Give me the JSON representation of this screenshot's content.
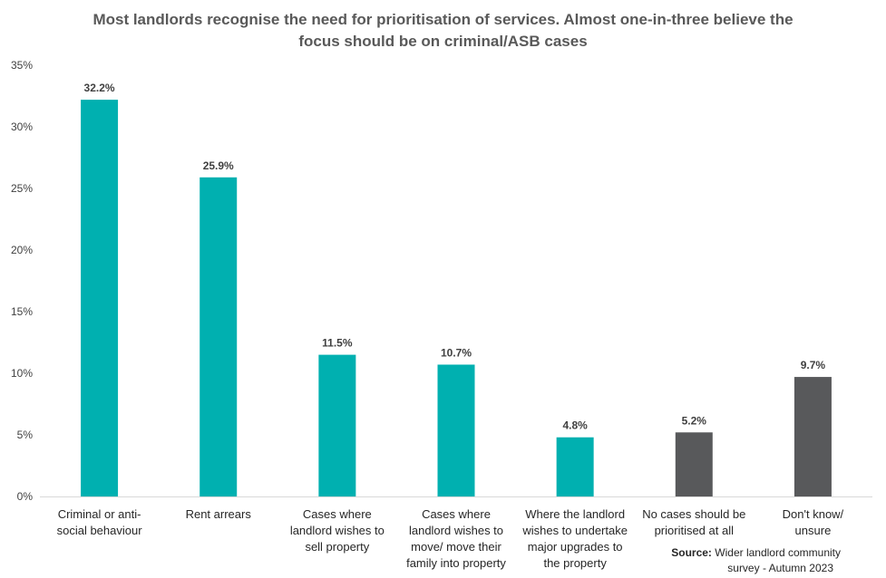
{
  "title": {
    "line1": "Most landlords recognise the need for prioritisation of services. Almost one-in-three believe the",
    "line2": "focus should be on criminal/ASB cases"
  },
  "chart_data": {
    "type": "bar",
    "title": "Most landlords recognise the need for prioritisation of services. Almost one-in-three believe the focus should be on criminal/ASB cases",
    "categories": [
      [
        "Criminal or anti-",
        "social behaviour"
      ],
      [
        "Rent arrears"
      ],
      [
        "Cases where",
        "landlord wishes to",
        "sell property"
      ],
      [
        "Cases where",
        "landlord wishes to",
        "move/ move their",
        "family into property"
      ],
      [
        "Where the landlord",
        "wishes to undertake",
        "major upgrades to",
        "the property"
      ],
      [
        "No cases should be",
        "prioritised at all"
      ],
      [
        "Don't know/",
        "unsure"
      ]
    ],
    "values": [
      32.2,
      25.9,
      11.5,
      10.7,
      4.8,
      5.2,
      9.7
    ],
    "data_labels": [
      "32.2%",
      "25.9%",
      "11.5%",
      "10.7%",
      "4.8%",
      "5.2%",
      "9.7%"
    ],
    "ylim": [
      0,
      35
    ],
    "yticks": [
      "0%",
      "5%",
      "10%",
      "15%",
      "20%",
      "25%",
      "30%",
      "35%"
    ],
    "ytick_values": [
      0,
      5,
      10,
      15,
      20,
      25,
      30,
      35
    ],
    "xlabel": "",
    "ylabel": "",
    "grid": false,
    "colors": [
      "#00B0B0",
      "#00B0B0",
      "#00B0B0",
      "#00B0B0",
      "#00B0B0",
      "#58595B",
      "#58595B"
    ],
    "axis_color": "#D9D9D9"
  },
  "source": {
    "label": "Source:",
    "text1": " Wider landlord community",
    "text2": "survey - Autumn  2023"
  }
}
